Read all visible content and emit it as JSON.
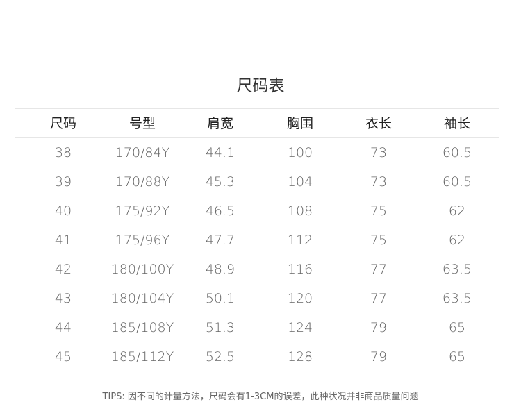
{
  "title": "尺码表",
  "headers": [
    "尺码",
    "号型",
    "肩宽",
    "胸围",
    "衣长",
    "袖长"
  ],
  "rows": [
    [
      "38",
      "170/84Y",
      "44.1",
      "100",
      "73",
      "60.5"
    ],
    [
      "39",
      "170/88Y",
      "45.3",
      "104",
      "73",
      "60.5"
    ],
    [
      "40",
      "175/92Y",
      "46.5",
      "108",
      "75",
      "62"
    ],
    [
      "41",
      "175/96Y",
      "47.7",
      "112",
      "75",
      "62"
    ],
    [
      "42",
      "180/100Y",
      "48.9",
      "116",
      "77",
      "63.5"
    ],
    [
      "43",
      "180/104Y",
      "50.1",
      "120",
      "77",
      "63.5"
    ],
    [
      "44",
      "185/108Y",
      "51.3",
      "124",
      "79",
      "65"
    ],
    [
      "45",
      "185/112Y",
      "52.5",
      "128",
      "79",
      "65"
    ]
  ],
  "tips": "TIPS: 因不同的计量方法，尺码会有1-3CM的误差，此种状况并非商品质量问题"
}
